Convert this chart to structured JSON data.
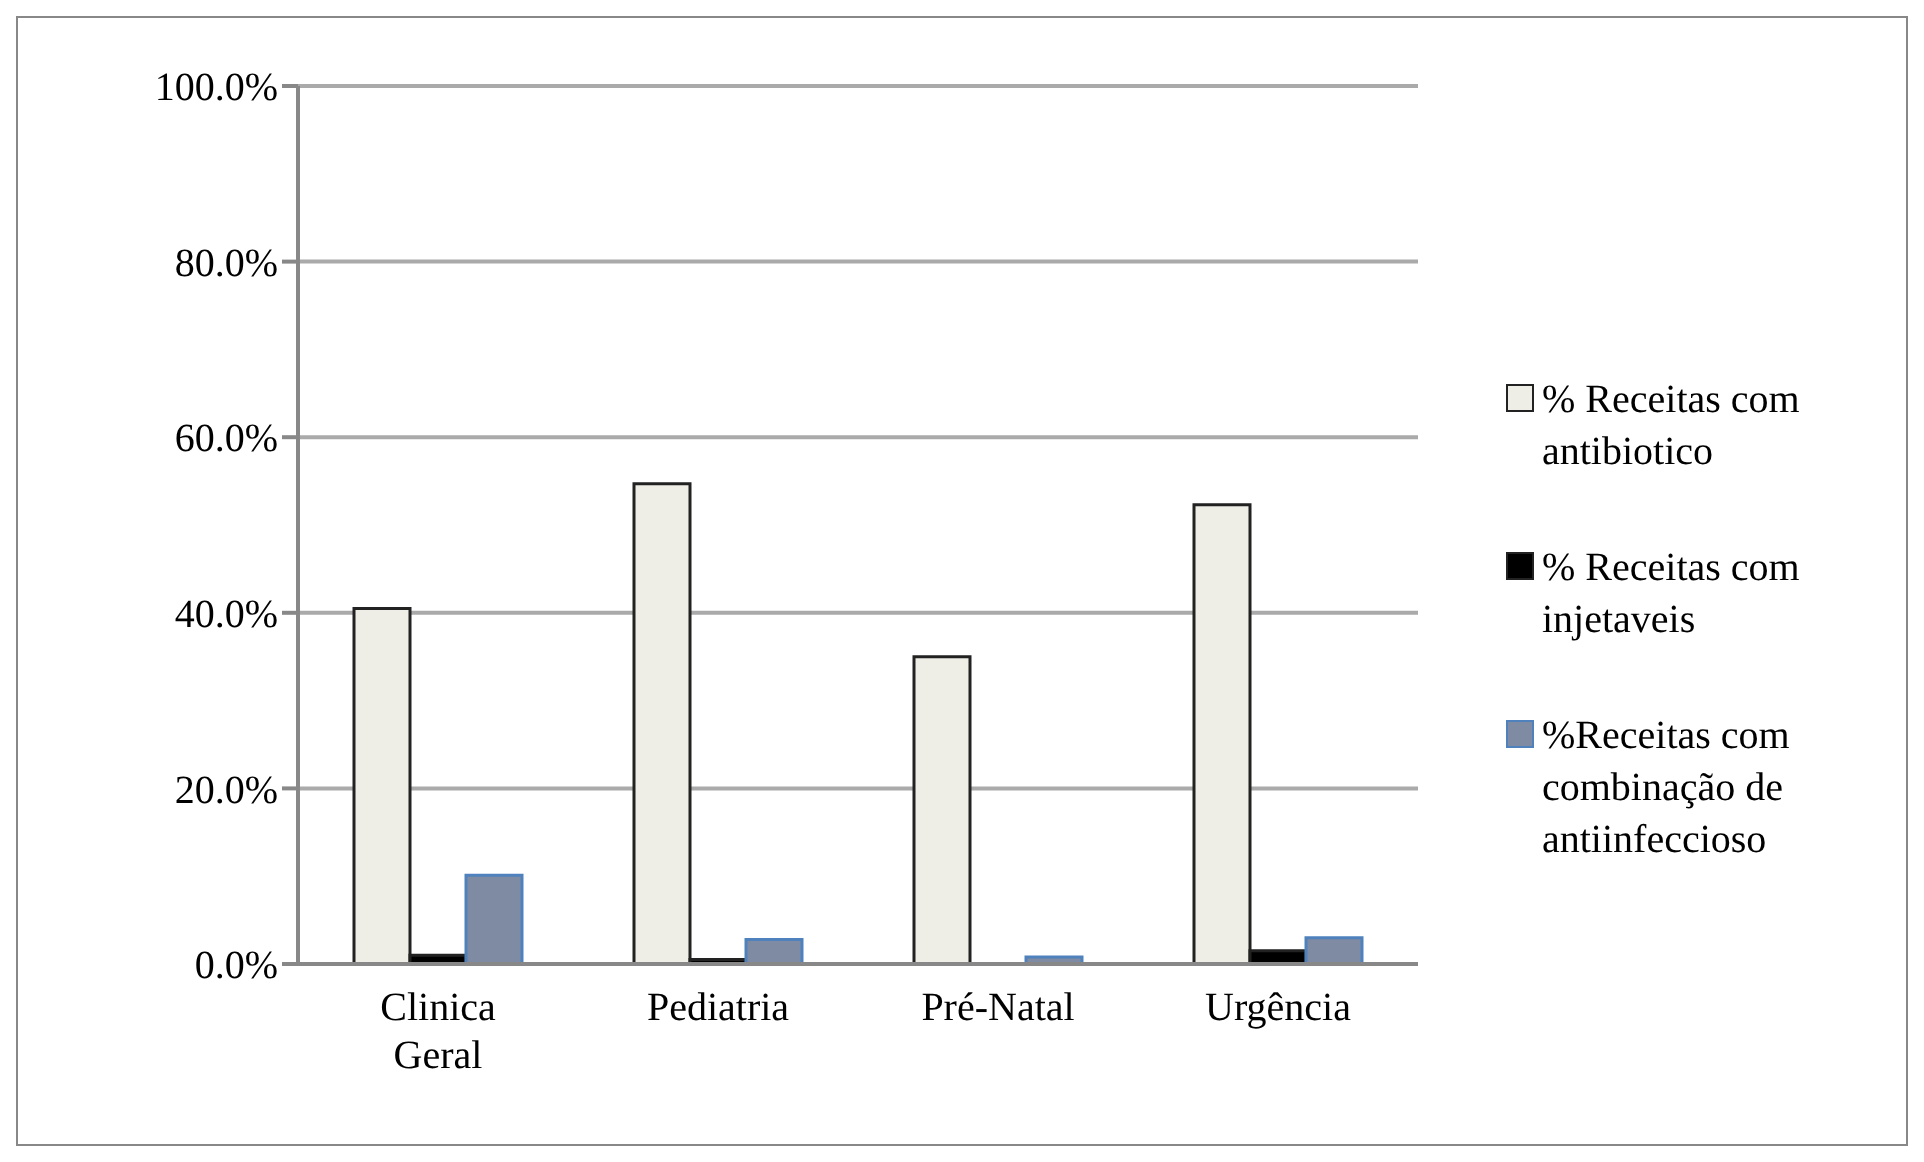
{
  "chart_data": {
    "type": "bar",
    "categories": [
      "Clinica Geral",
      "Pediatria",
      "Pré-Natal",
      "Urgência"
    ],
    "series": [
      {
        "name": "%  Receitas com antibiotico",
        "color": "#eeede6",
        "values": [
          40.5,
          54.7,
          35.0,
          52.3
        ]
      },
      {
        "name": "%  Receitas com injetaveis",
        "color": "#000000",
        "values": [
          1.0,
          0.5,
          0.0,
          1.5
        ]
      },
      {
        "name": "%Receitas com combinação de antiinfeccioso",
        "color": "#7f8aa3",
        "values": [
          10.1,
          2.8,
          0.8,
          3.0
        ]
      }
    ],
    "ylim": [
      0,
      100
    ],
    "yticks": [
      {
        "value": 0,
        "label": "0.0%"
      },
      {
        "value": 20,
        "label": "20.0%"
      },
      {
        "value": 40,
        "label": "40.0%"
      },
      {
        "value": 60,
        "label": "60.0%"
      },
      {
        "value": 80,
        "label": "80.0%"
      },
      {
        "value": 100,
        "label": "100.0%"
      }
    ],
    "grid": "y",
    "legend": "right"
  }
}
